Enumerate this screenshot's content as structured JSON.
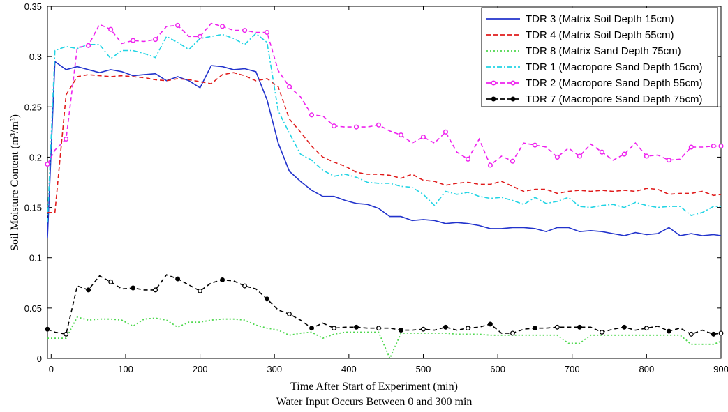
{
  "chart_data": {
    "type": "line",
    "title": "",
    "xlabel": "Time After Start of Experiment (min)",
    "xlabel_line2": "Water Input Occurs Between 0 and 300 min",
    "ylabel": "Soil Moisture Content (m³/m³)",
    "xlim": [
      -5,
      900
    ],
    "ylim": [
      0,
      0.35
    ],
    "x_ticks": [
      0,
      100,
      200,
      300,
      400,
      500,
      600,
      700,
      800,
      900
    ],
    "x_tick_labels": [
      "0",
      "100",
      "200",
      "300",
      "400",
      "500",
      "600",
      "700",
      "800",
      "900"
    ],
    "y_ticks": [
      0,
      0.05,
      0.1,
      0.15,
      0.2,
      0.25,
      0.3,
      0.35
    ],
    "y_tick_labels": [
      "0",
      "0.05",
      "0.1",
      "0.15",
      "0.2",
      "0.25",
      "0.3",
      "0.35"
    ],
    "grid": false,
    "legend_position": "top-right",
    "x": [
      -5,
      5,
      20,
      35,
      50,
      65,
      80,
      95,
      110,
      125,
      140,
      155,
      170,
      185,
      200,
      215,
      230,
      245,
      260,
      275,
      290,
      305,
      320,
      335,
      350,
      365,
      380,
      395,
      410,
      425,
      440,
      455,
      470,
      485,
      500,
      515,
      530,
      545,
      560,
      575,
      590,
      605,
      620,
      635,
      650,
      665,
      680,
      695,
      710,
      725,
      740,
      755,
      770,
      785,
      800,
      815,
      830,
      845,
      860,
      875,
      890,
      900
    ],
    "series": [
      {
        "name": "TDR 3 (Matrix Soil Depth 15cm)",
        "color": "#2233cc",
        "dash": "solid",
        "marker": "none",
        "values": [
          0.12,
          0.295,
          0.287,
          0.29,
          0.287,
          0.284,
          0.287,
          0.285,
          0.281,
          0.282,
          0.283,
          0.276,
          0.28,
          0.276,
          0.269,
          0.291,
          0.29,
          0.287,
          0.288,
          0.285,
          0.257,
          0.214,
          0.186,
          0.176,
          0.167,
          0.161,
          0.161,
          0.157,
          0.154,
          0.153,
          0.149,
          0.141,
          0.141,
          0.137,
          0.138,
          0.137,
          0.134,
          0.135,
          0.134,
          0.132,
          0.129,
          0.129,
          0.13,
          0.13,
          0.129,
          0.126,
          0.13,
          0.13,
          0.126,
          0.127,
          0.126,
          0.124,
          0.122,
          0.125,
          0.123,
          0.124,
          0.13,
          0.122,
          0.124,
          0.122,
          0.123,
          0.122
        ]
      },
      {
        "name": "TDR 4 (Matrix Soil Depth 55cm)",
        "color": "#e01c1c",
        "dash": "dashed",
        "marker": "none",
        "values": [
          0.145,
          0.145,
          0.262,
          0.28,
          0.282,
          0.281,
          0.28,
          0.281,
          0.28,
          0.279,
          0.277,
          0.276,
          0.278,
          0.277,
          0.275,
          0.273,
          0.282,
          0.284,
          0.281,
          0.276,
          0.278,
          0.27,
          0.238,
          0.225,
          0.211,
          0.2,
          0.195,
          0.191,
          0.185,
          0.183,
          0.183,
          0.182,
          0.179,
          0.183,
          0.177,
          0.176,
          0.172,
          0.174,
          0.175,
          0.173,
          0.173,
          0.176,
          0.171,
          0.166,
          0.168,
          0.168,
          0.164,
          0.166,
          0.167,
          0.166,
          0.167,
          0.166,
          0.167,
          0.166,
          0.169,
          0.168,
          0.163,
          0.164,
          0.164,
          0.166,
          0.162,
          0.163
        ]
      },
      {
        "name": "TDR 8 (Matrix Sand Depth 75cm)",
        "color": "#4fd84f",
        "dash": "dotted",
        "marker": "none",
        "values": [
          0.02,
          0.02,
          0.02,
          0.041,
          0.038,
          0.039,
          0.039,
          0.038,
          0.032,
          0.039,
          0.04,
          0.038,
          0.031,
          0.036,
          0.036,
          0.038,
          0.039,
          0.039,
          0.038,
          0.033,
          0.03,
          0.028,
          0.023,
          0.025,
          0.026,
          0.02,
          0.024,
          0.026,
          0.026,
          0.026,
          0.026,
          0.0,
          0.025,
          0.025,
          0.025,
          0.025,
          0.025,
          0.024,
          0.024,
          0.024,
          0.023,
          0.023,
          0.023,
          0.023,
          0.023,
          0.023,
          0.023,
          0.015,
          0.015,
          0.023,
          0.023,
          0.023,
          0.023,
          0.023,
          0.023,
          0.023,
          0.023,
          0.023,
          0.014,
          0.014,
          0.014,
          0.017
        ]
      },
      {
        "name": "TDR 1 (Macropore Sand Depth 15cm)",
        "color": "#22d4e4",
        "dash": "dashdot",
        "marker": "none",
        "values": [
          0.135,
          0.306,
          0.31,
          0.308,
          0.312,
          0.312,
          0.298,
          0.306,
          0.306,
          0.303,
          0.299,
          0.32,
          0.314,
          0.307,
          0.318,
          0.32,
          0.322,
          0.318,
          0.312,
          0.323,
          0.314,
          0.246,
          0.224,
          0.203,
          0.197,
          0.187,
          0.181,
          0.183,
          0.18,
          0.175,
          0.174,
          0.174,
          0.171,
          0.17,
          0.163,
          0.152,
          0.166,
          0.163,
          0.165,
          0.161,
          0.159,
          0.16,
          0.157,
          0.153,
          0.16,
          0.154,
          0.156,
          0.16,
          0.151,
          0.15,
          0.152,
          0.153,
          0.15,
          0.155,
          0.152,
          0.15,
          0.151,
          0.151,
          0.142,
          0.145,
          0.151,
          0.151
        ]
      },
      {
        "name": "TDR 2 (Macropore Sand Depth 55cm)",
        "color": "#ee22ee",
        "dash": "dashed",
        "marker": "circle-open",
        "values": [
          0.193,
          0.207,
          0.218,
          0.309,
          0.311,
          0.332,
          0.327,
          0.313,
          0.316,
          0.315,
          0.317,
          0.33,
          0.331,
          0.32,
          0.32,
          0.333,
          0.33,
          0.326,
          0.326,
          0.324,
          0.324,
          0.286,
          0.27,
          0.26,
          0.242,
          0.241,
          0.231,
          0.23,
          0.23,
          0.23,
          0.232,
          0.226,
          0.222,
          0.214,
          0.22,
          0.214,
          0.225,
          0.205,
          0.198,
          0.218,
          0.192,
          0.201,
          0.196,
          0.214,
          0.212,
          0.21,
          0.2,
          0.209,
          0.201,
          0.213,
          0.205,
          0.197,
          0.203,
          0.214,
          0.201,
          0.202,
          0.197,
          0.198,
          0.21,
          0.21,
          0.211,
          0.211
        ]
      },
      {
        "name": "TDR 7 (Macropore Sand Depth 75cm)",
        "color": "#000000",
        "dash": "dashed",
        "marker": "circle-mixed",
        "values": [
          0.029,
          0.026,
          0.024,
          0.072,
          0.068,
          0.082,
          0.076,
          0.069,
          0.07,
          0.068,
          0.068,
          0.083,
          0.079,
          0.073,
          0.067,
          0.075,
          0.078,
          0.077,
          0.072,
          0.069,
          0.059,
          0.048,
          0.044,
          0.038,
          0.03,
          0.035,
          0.03,
          0.031,
          0.031,
          0.03,
          0.03,
          0.03,
          0.028,
          0.028,
          0.029,
          0.028,
          0.031,
          0.028,
          0.03,
          0.031,
          0.034,
          0.025,
          0.025,
          0.029,
          0.03,
          0.03,
          0.031,
          0.031,
          0.031,
          0.031,
          0.026,
          0.029,
          0.031,
          0.028,
          0.03,
          0.032,
          0.027,
          0.03,
          0.024,
          0.028,
          0.024,
          0.025
        ]
      }
    ]
  }
}
